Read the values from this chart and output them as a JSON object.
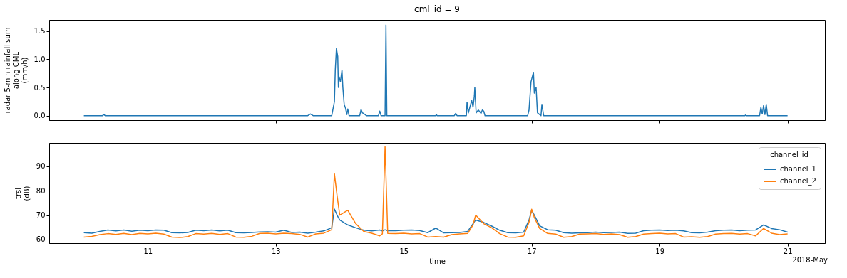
{
  "chart_data": [
    {
      "type": "line",
      "title": "cml_id = 9",
      "ylabel": "radar 5-min rainfall sum\nalong CML\n(mm/h)",
      "tick_labels": "y",
      "grid": false,
      "xlim": [
        "2018-05-09T11:00",
        "2018-05-21T14:00"
      ],
      "xticks": [
        {
          "value": "2018-05-11",
          "label": null
        },
        {
          "value": "2018-05-13",
          "label": null
        },
        {
          "value": "2018-05-15",
          "label": null
        },
        {
          "value": "2018-05-17",
          "label": null
        },
        {
          "value": "2018-05-19",
          "label": null
        },
        {
          "value": "2018-05-21",
          "label": null
        }
      ],
      "ylim": [
        -0.08,
        1.7
      ],
      "yticks": [
        {
          "value": 0,
          "label": "0.0"
        },
        {
          "value": 0.5,
          "label": "0.5"
        },
        {
          "value": 1,
          "label": "1.0"
        },
        {
          "value": 1.5,
          "label": "1.5"
        }
      ],
      "x": [
        "2018-05-10T00:00",
        "2018-05-10T07:00",
        "2018-05-10T07:30",
        "2018-05-10T08:00",
        "2018-05-13T12:00",
        "2018-05-13T13:00",
        "2018-05-13T14:00",
        "2018-05-13T21:00",
        "2018-05-13T22:00",
        "2018-05-13T22:20",
        "2018-05-13T22:45",
        "2018-05-13T23:15",
        "2018-05-13T23:30",
        "2018-05-13T23:45",
        "2018-05-14T00:15",
        "2018-05-14T00:50",
        "2018-05-14T01:10",
        "2018-05-14T01:40",
        "2018-05-14T02:10",
        "2018-05-14T02:40",
        "2018-05-14T03:00",
        "2018-05-14T03:30",
        "2018-05-14T07:30",
        "2018-05-14T08:00",
        "2018-05-14T08:30",
        "2018-05-14T09:30",
        "2018-05-14T10:00",
        "2018-05-14T14:30",
        "2018-05-14T15:00",
        "2018-05-14T15:30",
        "2018-05-14T17:00",
        "2018-05-14T17:20",
        "2018-05-14T17:40",
        "2018-05-15T12:00",
        "2018-05-15T12:15",
        "2018-05-15T12:30",
        "2018-05-15T19:00",
        "2018-05-15T19:30",
        "2018-05-15T20:00",
        "2018-05-15T23:30",
        "2018-05-15T23:45",
        "2018-05-16T00:15",
        "2018-05-16T01:30",
        "2018-05-16T02:00",
        "2018-05-16T02:30",
        "2018-05-16T02:40",
        "2018-05-16T03:10",
        "2018-05-16T04:00",
        "2018-05-16T05:00",
        "2018-05-16T05:30",
        "2018-05-16T06:00",
        "2018-05-16T06:30",
        "2018-05-16T22:30",
        "2018-05-16T23:00",
        "2018-05-16T23:45",
        "2018-05-17T00:40",
        "2018-05-17T01:00",
        "2018-05-17T01:40",
        "2018-05-17T02:10",
        "2018-05-17T03:30",
        "2018-05-17T03:50",
        "2018-05-17T04:30",
        "2018-05-20T08:00",
        "2018-05-20T08:15",
        "2018-05-20T08:30",
        "2018-05-20T13:30",
        "2018-05-20T14:00",
        "2018-05-20T14:30",
        "2018-05-20T15:00",
        "2018-05-20T15:30",
        "2018-05-20T16:00",
        "2018-05-20T16:30",
        "2018-05-21T00:00"
      ],
      "series": [
        {
          "color": "#1f77b4",
          "values": [
            0,
            0,
            0.02,
            0,
            0,
            0.03,
            0,
            0,
            0.25,
            0.82,
            1.19,
            1.05,
            0.5,
            0.69,
            0.6,
            0.81,
            0.5,
            0.2,
            0.13,
            0.02,
            0.12,
            0,
            0,
            0.11,
            0.05,
            0.02,
            0,
            0,
            0.08,
            0,
            0,
            1.61,
            0,
            0,
            0.02,
            0,
            0,
            0.04,
            0,
            0,
            0.24,
            0.05,
            0.27,
            0.15,
            0.35,
            0.5,
            0.05,
            0.1,
            0.04,
            0.1,
            0.08,
            0,
            0,
            0.1,
            0.6,
            0.77,
            0.4,
            0.5,
            0.05,
            0,
            0.2,
            0,
            0,
            0.01,
            0,
            0,
            0.15,
            0.03,
            0.18,
            0.02,
            0.2,
            0,
            0
          ]
        }
      ]
    },
    {
      "type": "line",
      "xlabel": "time",
      "ylabel": "trsl\n(dB)",
      "legend_title": "channel_id",
      "legend": "top right",
      "grid": false,
      "annotations": [
        "2018-May"
      ],
      "xlim": [
        "2018-05-09T11:00",
        "2018-05-21T14:00"
      ],
      "xticks": [
        {
          "value": "2018-05-11",
          "label": "11"
        },
        {
          "value": "2018-05-13",
          "label": "13"
        },
        {
          "value": "2018-05-15",
          "label": "15"
        },
        {
          "value": "2018-05-17",
          "label": "17"
        },
        {
          "value": "2018-05-19",
          "label": "19"
        },
        {
          "value": "2018-05-21",
          "label": "21"
        }
      ],
      "ylim": [
        58.5,
        99.6
      ],
      "yticks": [
        60,
        70,
        80,
        90
      ],
      "x": [
        "2018-05-10T00:00",
        "2018-05-10T03:00",
        "2018-05-10T06:00",
        "2018-05-10T09:00",
        "2018-05-10T12:00",
        "2018-05-10T15:00",
        "2018-05-10T18:00",
        "2018-05-10T21:00",
        "2018-05-11T00:00",
        "2018-05-11T03:00",
        "2018-05-11T06:00",
        "2018-05-11T09:00",
        "2018-05-11T12:00",
        "2018-05-11T15:00",
        "2018-05-11T18:00",
        "2018-05-11T21:00",
        "2018-05-12T00:00",
        "2018-05-12T03:00",
        "2018-05-12T06:00",
        "2018-05-12T09:00",
        "2018-05-12T12:00",
        "2018-05-12T15:00",
        "2018-05-12T18:00",
        "2018-05-12T21:00",
        "2018-05-13T00:00",
        "2018-05-13T03:00",
        "2018-05-13T06:00",
        "2018-05-13T09:00",
        "2018-05-13T12:00",
        "2018-05-13T15:00",
        "2018-05-13T18:00",
        "2018-05-13T21:00",
        "2018-05-13T22:00",
        "2018-05-13T23:00",
        "2018-05-14T00:00",
        "2018-05-14T03:00",
        "2018-05-14T06:00",
        "2018-05-14T09:00",
        "2018-05-14T12:00",
        "2018-05-14T15:00",
        "2018-05-14T16:00",
        "2018-05-14T17:00",
        "2018-05-14T18:00",
        "2018-05-14T21:00",
        "2018-05-15T00:00",
        "2018-05-15T03:00",
        "2018-05-15T06:00",
        "2018-05-15T09:00",
        "2018-05-15T12:00",
        "2018-05-15T15:00",
        "2018-05-15T18:00",
        "2018-05-15T21:00",
        "2018-05-16T00:00",
        "2018-05-16T02:00",
        "2018-05-16T03:00",
        "2018-05-16T06:00",
        "2018-05-16T09:00",
        "2018-05-16T12:00",
        "2018-05-16T15:00",
        "2018-05-16T18:00",
        "2018-05-16T21:00",
        "2018-05-16T23:00",
        "2018-05-17T00:00",
        "2018-05-17T01:00",
        "2018-05-17T03:00",
        "2018-05-17T06:00",
        "2018-05-17T09:00",
        "2018-05-17T12:00",
        "2018-05-17T15:00",
        "2018-05-17T18:00",
        "2018-05-17T21:00",
        "2018-05-18T00:00",
        "2018-05-18T03:00",
        "2018-05-18T06:00",
        "2018-05-18T09:00",
        "2018-05-18T12:00",
        "2018-05-18T15:00",
        "2018-05-18T18:00",
        "2018-05-18T21:00",
        "2018-05-19T00:00",
        "2018-05-19T03:00",
        "2018-05-19T06:00",
        "2018-05-19T09:00",
        "2018-05-19T12:00",
        "2018-05-19T15:00",
        "2018-05-19T18:00",
        "2018-05-19T21:00",
        "2018-05-20T00:00",
        "2018-05-20T03:00",
        "2018-05-20T06:00",
        "2018-05-20T09:00",
        "2018-05-20T12:00",
        "2018-05-20T15:00",
        "2018-05-20T18:00",
        "2018-05-20T21:00",
        "2018-05-21T00:00"
      ],
      "series": [
        {
          "name": "channel_1",
          "color": "#1f77b4",
          "values": [
            62.8,
            62.6,
            63.3,
            63.9,
            63.5,
            63.9,
            63.4,
            63.8,
            63.6,
            63.9,
            63.8,
            62.8,
            62.7,
            62.9,
            63.8,
            63.6,
            63.9,
            63.5,
            63.8,
            62.8,
            62.7,
            62.9,
            63.1,
            63.2,
            63.0,
            63.8,
            62.9,
            63.0,
            62.6,
            63.0,
            63.5,
            64.8,
            72.5,
            70.0,
            68.0,
            66.0,
            64.8,
            63.8,
            63.5,
            63.9,
            63.5,
            64.0,
            63.6,
            63.6,
            63.8,
            63.9,
            63.7,
            62.8,
            64.7,
            62.7,
            62.8,
            62.9,
            63.3,
            66.5,
            68.0,
            67.0,
            65.5,
            63.8,
            62.8,
            62.7,
            63.0,
            68.0,
            72.0,
            70.0,
            65.6,
            64.0,
            63.8,
            62.8,
            62.6,
            62.7,
            62.8,
            63.0,
            62.8,
            62.9,
            63.0,
            62.5,
            62.6,
            63.6,
            63.8,
            63.9,
            63.7,
            63.8,
            63.5,
            62.8,
            62.7,
            63.0,
            63.6,
            63.8,
            63.9,
            63.6,
            63.8,
            63.9,
            66.0,
            64.5,
            64.0,
            63.0
          ]
        },
        {
          "name": "channel_2",
          "color": "#ff7f0e",
          "values": [
            61.0,
            61.3,
            62.0,
            62.4,
            62.1,
            62.5,
            62.0,
            62.5,
            62.3,
            62.6,
            62.2,
            61.0,
            60.8,
            61.2,
            62.4,
            62.2,
            62.5,
            62.1,
            62.4,
            61.0,
            60.9,
            61.3,
            62.5,
            62.6,
            62.3,
            62.6,
            62.4,
            62.1,
            61.0,
            62.3,
            62.6,
            64.0,
            87.0,
            78.0,
            70.0,
            72.0,
            66.5,
            63.3,
            62.6,
            61.5,
            62.3,
            98.0,
            62.5,
            62.4,
            62.6,
            62.3,
            62.4,
            61.0,
            61.2,
            61.0,
            62.0,
            62.3,
            62.5,
            66.0,
            70.0,
            66.5,
            64.8,
            62.4,
            61.0,
            60.9,
            61.5,
            67.0,
            72.4,
            69.0,
            64.5,
            62.5,
            62.2,
            60.9,
            61.2,
            62.2,
            62.3,
            62.4,
            62.1,
            62.3,
            62.0,
            60.9,
            61.2,
            62.2,
            62.4,
            62.6,
            62.3,
            62.4,
            61.0,
            61.1,
            60.9,
            61.2,
            62.2,
            62.4,
            62.5,
            62.2,
            62.4,
            61.5,
            64.5,
            62.6,
            62.0,
            62.3
          ]
        }
      ]
    }
  ]
}
